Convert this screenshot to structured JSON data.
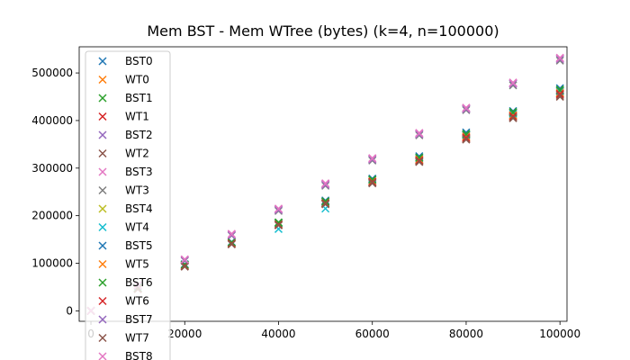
{
  "chart_data": {
    "type": "scatter",
    "title": "Mem BST - Mem WTree (bytes) (k=4, n=100000)",
    "xlabel": "",
    "ylabel": "",
    "xlim": [
      -2500,
      101500
    ],
    "ylim": [
      -22000,
      555000
    ],
    "x_ticks": [
      0,
      20000,
      40000,
      60000,
      80000,
      100000
    ],
    "y_ticks": [
      0,
      100000,
      200000,
      300000,
      400000,
      500000
    ],
    "marker": "x",
    "legend_position": "upper left",
    "series": [
      {
        "name": "BST0",
        "color": "#1f77b4",
        "x": [
          0,
          10000,
          20000,
          30000,
          40000,
          50000,
          60000,
          70000,
          80000,
          90000,
          100000
        ],
        "y": [
          0,
          48000,
          98000,
          145000,
          185000,
          232000,
          278000,
          325000,
          375000,
          420000,
          468000
        ]
      },
      {
        "name": "WT0",
        "color": "#ff7f0e",
        "x": [
          0,
          10000,
          20000,
          30000,
          40000,
          50000,
          60000,
          70000,
          80000,
          90000,
          100000
        ],
        "y": [
          0,
          47000,
          96000,
          143000,
          182000,
          228000,
          272000,
          318000,
          368000,
          412000,
          460000
        ]
      },
      {
        "name": "BST1",
        "color": "#2ca02c",
        "x": [
          0,
          10000,
          20000,
          30000,
          40000,
          50000,
          60000,
          70000,
          80000,
          90000,
          100000
        ],
        "y": [
          0,
          48000,
          97000,
          144000,
          186000,
          230000,
          276000,
          322000,
          372000,
          418000,
          465000
        ]
      },
      {
        "name": "WT1",
        "color": "#d62728",
        "x": [
          0,
          10000,
          20000,
          30000,
          40000,
          50000,
          60000,
          70000,
          80000,
          90000,
          100000
        ],
        "y": [
          0,
          46000,
          94000,
          140000,
          180000,
          225000,
          270000,
          315000,
          362000,
          408000,
          455000
        ]
      },
      {
        "name": "BST2",
        "color": "#9467bd",
        "x": [
          0,
          10000,
          20000,
          30000,
          40000,
          50000,
          60000,
          70000,
          80000,
          90000,
          100000
        ],
        "y": [
          0,
          53000,
          107000,
          160000,
          213000,
          266000,
          319000,
          372000,
          425000,
          478000,
          530000
        ]
      },
      {
        "name": "WT2",
        "color": "#8c564b",
        "x": [
          0,
          10000,
          20000,
          30000,
          40000,
          50000,
          60000,
          70000,
          80000,
          90000,
          100000
        ],
        "y": [
          0,
          46000,
          93000,
          140000,
          180000,
          224000,
          268000,
          313000,
          360000,
          405000,
          450000
        ]
      },
      {
        "name": "BST3",
        "color": "#e377c2",
        "x": [
          0,
          10000,
          20000,
          30000,
          40000,
          50000,
          60000,
          70000,
          80000,
          90000,
          100000
        ],
        "y": [
          0,
          54000,
          108000,
          162000,
          215000,
          268000,
          321000,
          374000,
          427000,
          480000,
          532000
        ]
      },
      {
        "name": "WT3",
        "color": "#7f7f7f",
        "x": [
          0,
          10000,
          20000,
          30000,
          40000,
          50000,
          60000,
          70000,
          80000,
          90000,
          100000
        ],
        "y": [
          0,
          52000,
          105000,
          158000,
          210000,
          263000,
          316000,
          369000,
          422000,
          474000,
          526000
        ]
      },
      {
        "name": "BST4",
        "color": "#bcbd22",
        "x": [
          0,
          10000,
          20000,
          30000,
          40000,
          50000,
          60000,
          70000,
          80000,
          90000,
          100000
        ],
        "y": [
          0,
          47000,
          95000,
          142000,
          181000,
          226000,
          271000,
          317000,
          364000,
          410000,
          458000
        ]
      },
      {
        "name": "WT4",
        "color": "#17becf",
        "x": [
          0,
          10000,
          20000,
          30000,
          40000,
          50000,
          60000,
          70000,
          80000,
          90000,
          100000
        ],
        "y": [
          0,
          47000,
          96000,
          142000,
          172000,
          215000,
          270000,
          316000,
          370000,
          414000,
          462000
        ]
      },
      {
        "name": "BST5",
        "color": "#1f77b4",
        "x": [
          0,
          10000,
          20000,
          30000,
          40000,
          50000,
          60000,
          70000,
          80000,
          90000,
          100000
        ],
        "y": [
          0,
          48000,
          97000,
          144000,
          184000,
          229000,
          275000,
          321000,
          370000,
          416000,
          463000
        ]
      },
      {
        "name": "WT5",
        "color": "#ff7f0e",
        "x": [
          0,
          10000,
          20000,
          30000,
          40000,
          50000,
          60000,
          70000,
          80000,
          90000,
          100000
        ],
        "y": [
          0,
          47000,
          95000,
          142000,
          181000,
          226000,
          272000,
          318000,
          366000,
          411000,
          457000
        ]
      },
      {
        "name": "BST6",
        "color": "#2ca02c",
        "x": [
          0,
          10000,
          20000,
          30000,
          40000,
          50000,
          60000,
          70000,
          80000,
          90000,
          100000
        ],
        "y": [
          0,
          48000,
          97000,
          144000,
          185000,
          230000,
          276000,
          322000,
          371000,
          417000,
          464000
        ]
      },
      {
        "name": "WT6",
        "color": "#d62728",
        "x": [
          0,
          10000,
          20000,
          30000,
          40000,
          50000,
          60000,
          70000,
          80000,
          90000,
          100000
        ],
        "y": [
          0,
          46000,
          94000,
          141000,
          181000,
          226000,
          271000,
          316000,
          364000,
          409000,
          456000
        ]
      },
      {
        "name": "BST7",
        "color": "#9467bd",
        "x": [
          0,
          10000,
          20000,
          30000,
          40000,
          50000,
          60000,
          70000,
          80000,
          90000,
          100000
        ],
        "y": [
          0,
          53000,
          106000,
          159000,
          212000,
          265000,
          318000,
          371000,
          424000,
          477000,
          529000
        ]
      },
      {
        "name": "WT7",
        "color": "#8c564b",
        "x": [
          0,
          10000,
          20000,
          30000,
          40000,
          50000,
          60000,
          70000,
          80000,
          90000,
          100000
        ],
        "y": [
          0,
          46000,
          93000,
          140000,
          180000,
          225000,
          269000,
          314000,
          361000,
          406000,
          452000
        ]
      },
      {
        "name": "BST8",
        "color": "#e377c2",
        "x": [
          0,
          10000,
          20000,
          30000,
          40000,
          50000,
          60000,
          70000,
          80000,
          90000,
          100000
        ],
        "y": [
          0,
          54000,
          108000,
          161000,
          214000,
          267000,
          320000,
          373000,
          426000,
          479000,
          531000
        ]
      }
    ]
  }
}
